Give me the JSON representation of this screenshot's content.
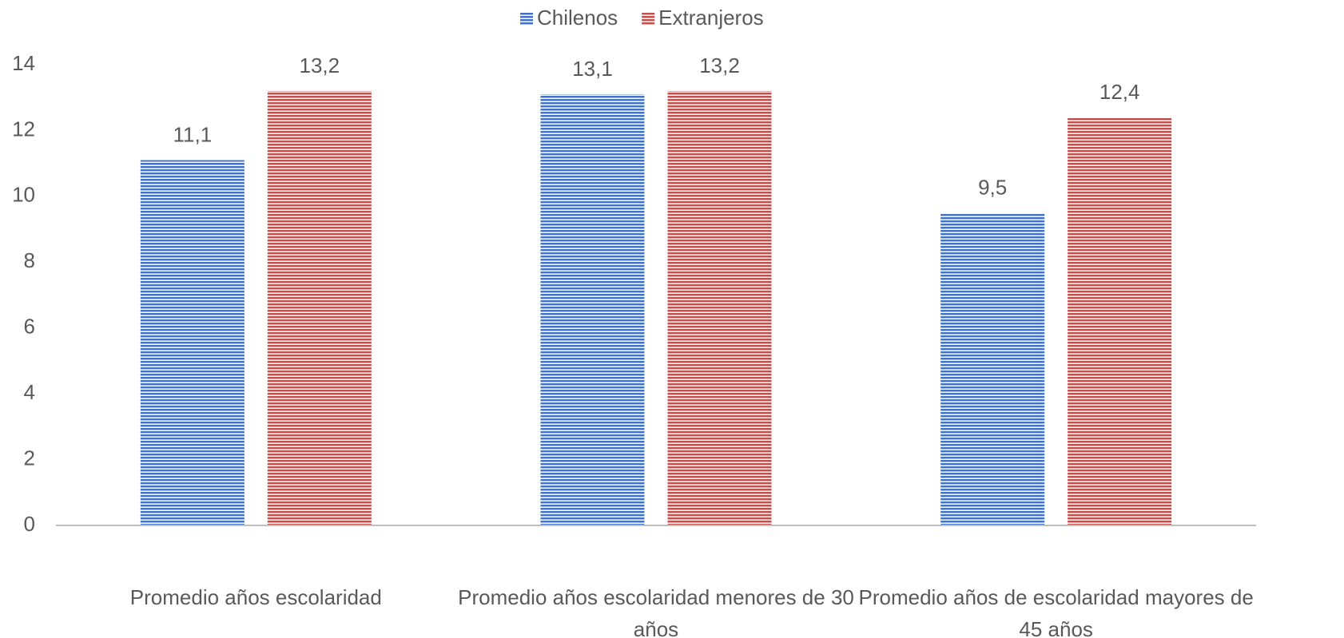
{
  "chart_data": {
    "type": "bar",
    "categories": [
      "Promedio años escolaridad",
      "Promedio años escolaridad menores de 30 años",
      "Promedio años de escolaridad mayores de 45 años"
    ],
    "series": [
      {
        "name": "Chilenos",
        "color": "#4472c4",
        "values": [
          11.1,
          13.1,
          9.5
        ],
        "value_labels": [
          "11,1",
          "13,1",
          "9,5"
        ]
      },
      {
        "name": "Extranjeros",
        "color": "#c0504d",
        "values": [
          13.2,
          13.2,
          12.4
        ],
        "value_labels": [
          "13,2",
          "13,2",
          "12,4"
        ]
      }
    ],
    "ylim": [
      0,
      14
    ],
    "yticks": [
      0,
      2,
      4,
      6,
      8,
      10,
      12,
      14
    ],
    "grid": false,
    "legend": "top"
  }
}
